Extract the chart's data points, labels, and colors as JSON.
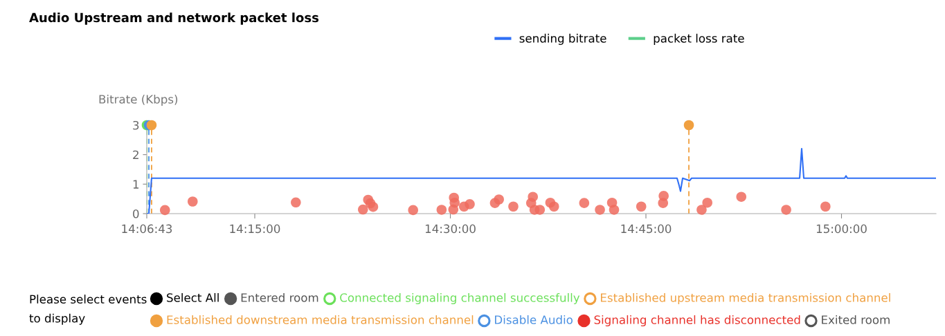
{
  "chart_data": [
    {
      "type": "line",
      "title": "Audio Upstream and network packet loss",
      "ylabel": "Bitrate (Kbps)",
      "xlim": [
        14.11194,
        15.1208
      ],
      "ylim": [
        0,
        3
      ],
      "yticks": [
        0,
        1,
        2,
        3
      ],
      "xticks": [
        {
          "value": 14.11194,
          "label": "14:06:43"
        },
        {
          "value": 14.25,
          "label": "14:15:00"
        },
        {
          "value": 14.5,
          "label": "14:30:00"
        },
        {
          "value": 14.75,
          "label": "14:45:00"
        },
        {
          "value": 15.0,
          "label": "15:00:00"
        }
      ],
      "grid": false,
      "legend": "top",
      "line_style": "solid",
      "series": [
        {
          "name": "sending bitrate",
          "color": "#2f6ff5",
          "x": [
            14.11194,
            14.1146,
            14.1181,
            14.2783,
            14.7898,
            14.7925,
            14.7942,
            14.7969,
            14.8058,
            14.8084,
            14.9465,
            14.9491,
            14.9518,
            15.004,
            15.0058,
            15.0075,
            15.1208
          ],
          "values": [
            0,
            0,
            1.2,
            1.2,
            1.2,
            0.95,
            0.76,
            1.2,
            1.12,
            1.2,
            1.2,
            2.2,
            1.2,
            1.2,
            1.28,
            1.2,
            1.2
          ]
        },
        {
          "name": "packet loss rate",
          "color": "#5ccf8a"
        },
        {
          "type": "scatter",
          "marker": "circle",
          "color": "#ee6b5e",
          "x": [
            14.1352,
            14.1706,
            14.3025,
            14.3883,
            14.3949,
            14.3978,
            14.4013,
            14.4524,
            14.4888,
            14.5046,
            14.5055,
            14.5038,
            14.5175,
            14.5248,
            14.557,
            14.5621,
            14.5805,
            14.6055,
            14.6033,
            14.6076,
            14.6144,
            14.6278,
            14.6325,
            14.6711,
            14.6912,
            14.7067,
            14.7093,
            14.744,
            14.7727,
            14.7719,
            14.8212,
            14.8285,
            14.8719,
            14.9293,
            14.9795
          ],
          "values": [
            0.12,
            0.41,
            0.38,
            0.14,
            0.47,
            0.35,
            0.23,
            0.12,
            0.13,
            0.54,
            0.37,
            0.14,
            0.24,
            0.32,
            0.36,
            0.48,
            0.24,
            0.57,
            0.36,
            0.13,
            0.13,
            0.37,
            0.24,
            0.36,
            0.13,
            0.37,
            0.13,
            0.24,
            0.6,
            0.36,
            0.13,
            0.37,
            0.57,
            0.13,
            0.24
          ]
        },
        {
          "type": "scatter",
          "marker": "circle",
          "x": [
            14.11194,
            14.1146,
            14.1181,
            14.8049
          ],
          "values": [
            3,
            3,
            3,
            3
          ],
          "colors": [
            "#6be05a",
            "#4a90e2",
            "#f0a040",
            "#f0a040"
          ]
        }
      ],
      "ref_lines": [
        {
          "axis": "x",
          "value": 14.11194,
          "color": "#6be05a",
          "line_style": "dashed"
        },
        {
          "axis": "x",
          "value": 14.1146,
          "color": "#4a90e2",
          "line_style": "dashed"
        },
        {
          "axis": "x",
          "value": 14.1181,
          "color": "#f0a040",
          "line_style": "dashed"
        },
        {
          "axis": "x",
          "value": 14.8049,
          "color": "#f0a040",
          "line_style": "dashed"
        }
      ]
    },
    {
      "type": "other",
      "title": "Please select events to display",
      "series": [
        {
          "name": "Select All",
          "color": "#000000"
        },
        {
          "name": "Entered room",
          "color": "#555555"
        },
        {
          "name": "Connected signaling channel successfully",
          "color": "#6be05a"
        },
        {
          "name": "Established upstream media transmission channel",
          "color": "#f0a040"
        },
        {
          "name": "Established downstream media transmission channel",
          "color": "#f0a040"
        },
        {
          "name": "Disable Audio",
          "color": "#4a90e2"
        },
        {
          "name": "Signaling channel has disconnected",
          "color": "#e8312a"
        },
        {
          "name": "Exited room",
          "color": "#555555"
        }
      ]
    }
  ]
}
